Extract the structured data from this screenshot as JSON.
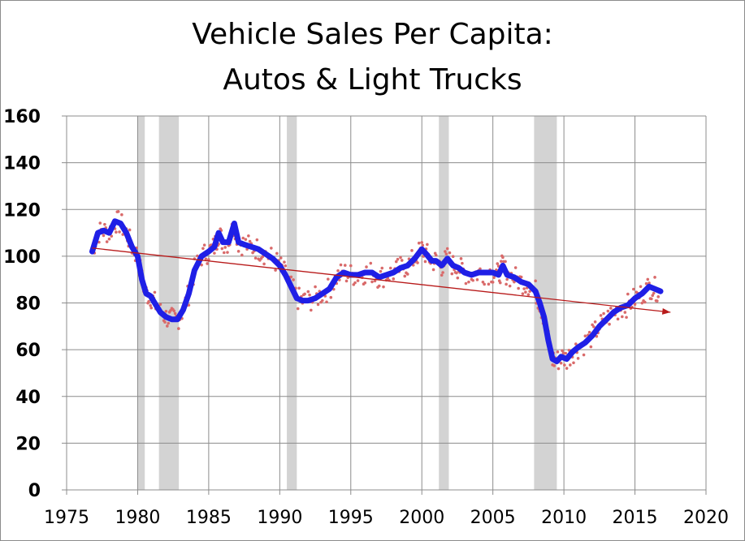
{
  "chart_data": {
    "type": "line",
    "title_line1": "Vehicle Sales Per Capita:",
    "title_line2": "Autos & Light Trucks",
    "xlabel": "",
    "ylabel": "",
    "xlim": [
      1975,
      2020
    ],
    "ylim": [
      0,
      160
    ],
    "x_ticks": [
      1975,
      1980,
      1985,
      1990,
      1995,
      2000,
      2005,
      2010,
      2015,
      2020
    ],
    "y_ticks": [
      0,
      20,
      40,
      60,
      80,
      100,
      120,
      140,
      160
    ],
    "grid": true,
    "legend": "none",
    "recession_shading": [
      [
        1980.0,
        1980.5
      ],
      [
        1981.5,
        1982.9
      ],
      [
        1990.5,
        1991.2
      ],
      [
        2001.2,
        2001.9
      ],
      [
        2007.9,
        2009.5
      ]
    ],
    "series": [
      {
        "style": "thick smoothed line",
        "color": "#1f1fe6",
        "x": [
          1976.8,
          1977.2,
          1977.6,
          1978.0,
          1978.4,
          1978.8,
          1979.2,
          1979.6,
          1980.0,
          1980.3,
          1980.6,
          1980.9,
          1981.2,
          1981.6,
          1982.0,
          1982.4,
          1982.8,
          1983.2,
          1983.6,
          1984.0,
          1984.5,
          1985.0,
          1985.4,
          1985.7,
          1986.0,
          1986.4,
          1986.8,
          1987.1,
          1987.5,
          1988.0,
          1988.5,
          1989.0,
          1989.5,
          1990.0,
          1990.4,
          1990.8,
          1991.2,
          1991.6,
          1992.0,
          1992.5,
          1993.0,
          1993.5,
          1994.0,
          1994.5,
          1995.0,
          1995.5,
          1996.0,
          1996.5,
          1997.0,
          1997.5,
          1998.0,
          1998.5,
          1999.0,
          1999.5,
          2000.0,
          2000.3,
          2000.7,
          2001.0,
          2001.4,
          2001.8,
          2002.2,
          2002.6,
          2003.0,
          2003.5,
          2004.0,
          2004.5,
          2005.0,
          2005.4,
          2005.7,
          2006.0,
          2006.5,
          2007.0,
          2007.5,
          2008.0,
          2008.3,
          2008.6,
          2008.9,
          2009.2,
          2009.5,
          2009.8,
          2010.2,
          2010.6,
          2011.0,
          2011.5,
          2012.0,
          2012.5,
          2013.0,
          2013.5,
          2014.0,
          2014.5,
          2015.0,
          2015.5,
          2016.0,
          2016.4,
          2016.8
        ],
        "y": [
          102,
          110,
          111,
          110,
          115,
          114,
          110,
          104,
          100,
          90,
          84,
          83,
          80,
          76,
          74,
          73,
          73,
          77,
          84,
          94,
          100,
          102,
          104,
          110,
          106,
          106,
          114,
          106,
          105,
          104,
          103,
          101,
          99,
          96,
          92,
          87,
          82,
          81,
          81,
          82,
          84,
          86,
          91,
          93,
          92,
          92,
          93,
          93,
          91,
          92,
          93,
          95,
          96,
          99,
          103,
          101,
          98,
          98,
          96,
          99,
          96,
          95,
          93,
          92,
          93,
          93,
          93,
          92,
          96,
          92,
          91,
          89,
          88,
          85,
          80,
          74,
          64,
          56,
          55,
          57,
          56,
          59,
          61,
          63,
          66,
          70,
          73,
          76,
          78,
          79,
          82,
          84,
          87,
          86,
          85
        ]
      },
      {
        "style": "trend arrow",
        "color": "#b81a1a",
        "x": [
          1976.8,
          2017.5
        ],
        "y": [
          103.5,
          76
        ]
      }
    ]
  }
}
